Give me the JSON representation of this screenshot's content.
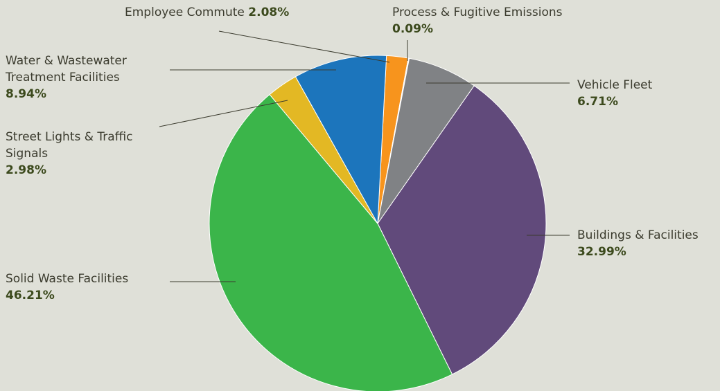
{
  "chart_data": {
    "type": "pie",
    "categories": [
      "Employee Commute",
      "Process & Fugitive Emissions",
      "Vehicle Fleet",
      "Buildings & Facilities",
      "Solid Waste Facilities",
      "Street Lights & Traffic Signals",
      "Water & Wastewater Treatment Facilities"
    ],
    "values": [
      2.08,
      0.09,
      6.71,
      32.99,
      46.21,
      2.98,
      8.94
    ],
    "value_labels": [
      "2.08%",
      "0.09%",
      "6.71%",
      "32.99%",
      "46.21%",
      "2.98%",
      "8.94%"
    ],
    "colors": [
      "#f7941d",
      "#e8e8e8",
      "#808285",
      "#614a7b",
      "#3bb54a",
      "#e3b824",
      "#1c75bc"
    ]
  }
}
